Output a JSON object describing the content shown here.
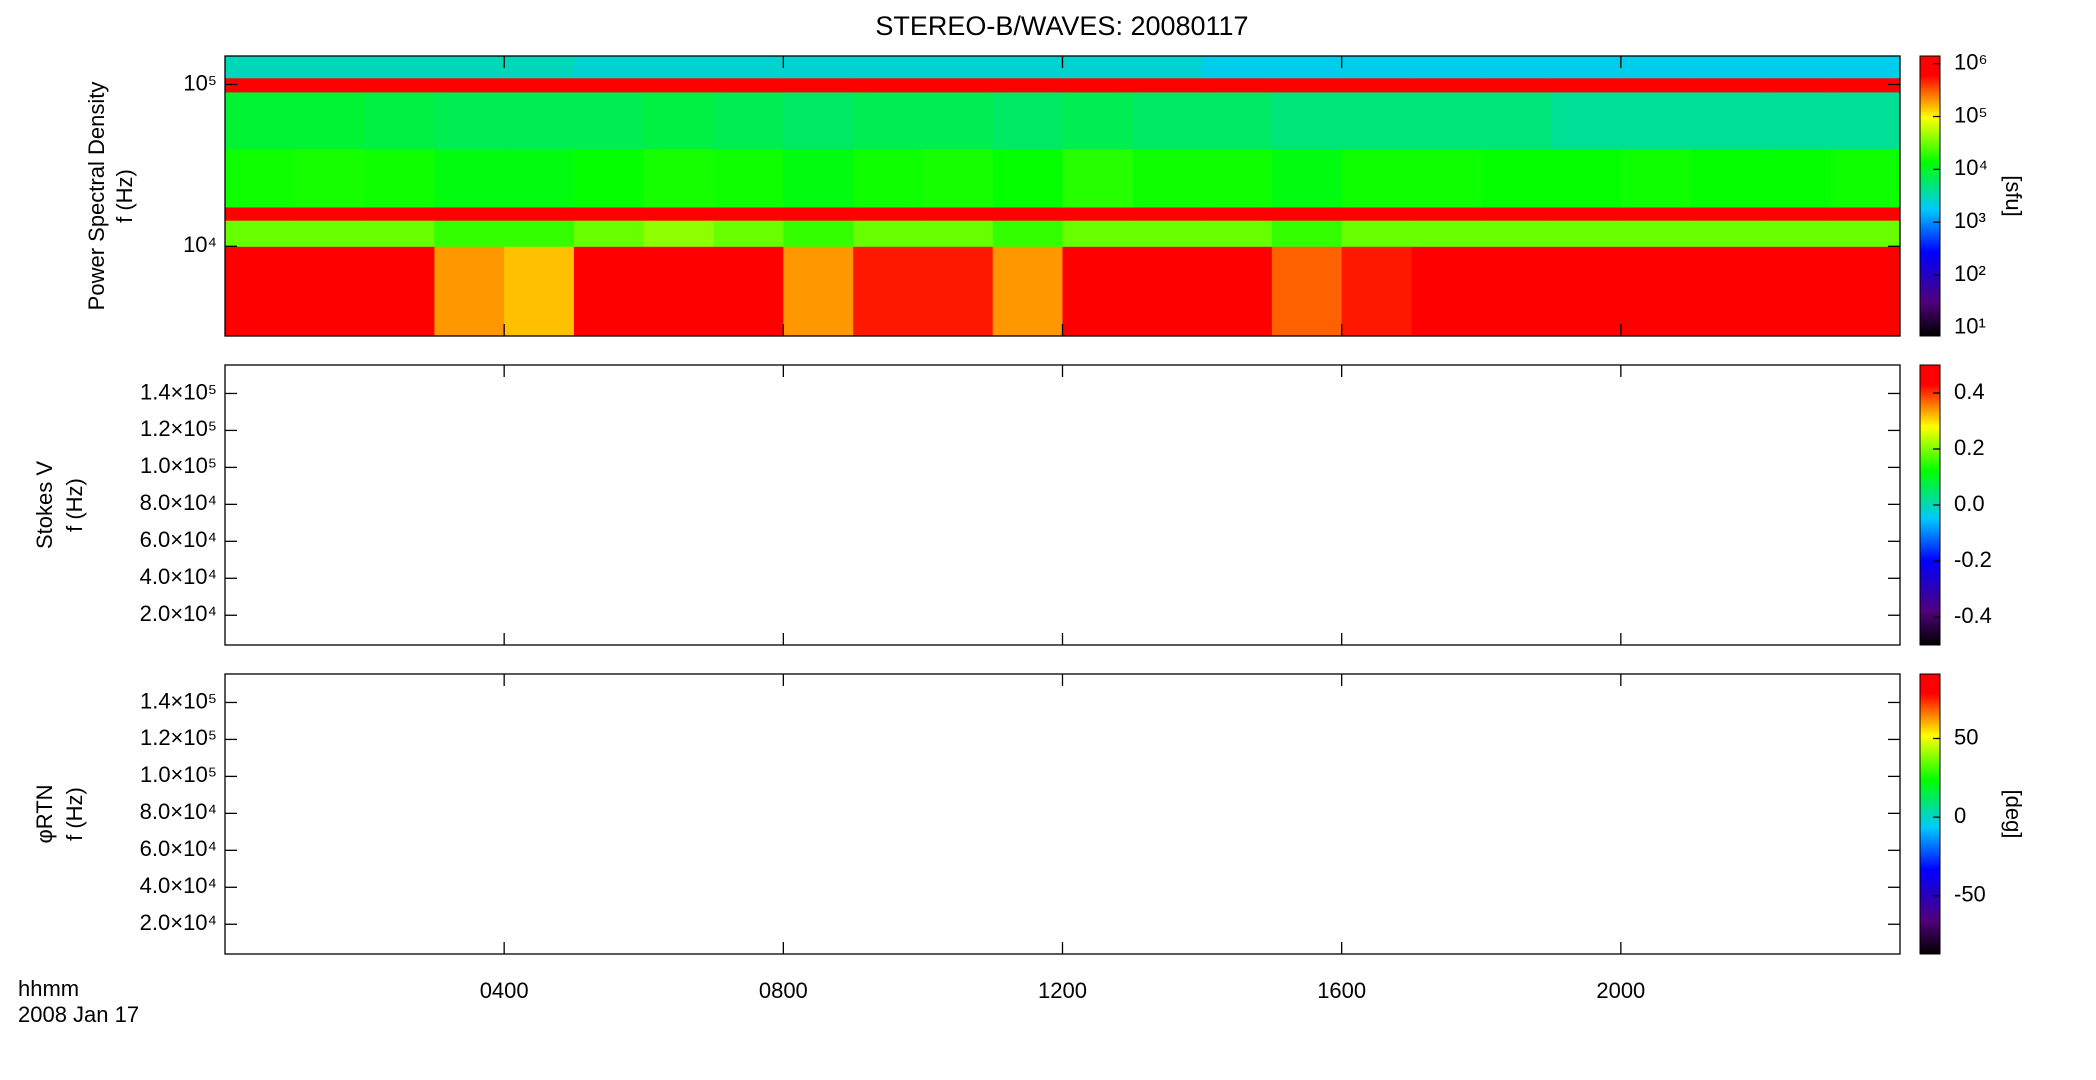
{
  "chart_data": [
    {
      "type": "heatmap",
      "title": "STEREO-B/WAVES: 20080117",
      "y_label": [
        "Power Spectral Density",
        "f (Hz)"
      ],
      "ylog": true,
      "ylim": [
        2790,
        150000
      ],
      "yticks": [
        {
          "value": 10000,
          "label": "10⁴"
        },
        {
          "value": 100000,
          "label": "10⁵"
        }
      ],
      "x_edges": [
        0,
        1,
        2,
        3,
        4,
        5,
        6,
        7,
        8,
        9,
        10,
        11,
        12,
        13,
        14,
        15,
        16,
        17,
        18,
        19,
        20,
        21,
        22,
        23,
        24
      ],
      "y_edges": [
        2790,
        10000,
        14500,
        17500,
        40000,
        90000,
        110000,
        150000
      ],
      "z": [
        [
          1000000,
          800000,
          600000,
          200000,
          150000,
          600000,
          1000000,
          1000000,
          200000,
          500000,
          500000,
          200000,
          800000,
          1000000,
          1000000,
          300000,
          500000,
          600000,
          700000,
          800000,
          800000,
          800000,
          800000,
          900000
        ],
        [
          30000,
          30000,
          30000,
          20000,
          20000,
          30000,
          40000,
          30000,
          20000,
          30000,
          30000,
          20000,
          30000,
          30000,
          30000,
          20000,
          30000,
          30000,
          30000,
          30000,
          30000,
          30000,
          30000,
          30000
        ],
        [
          1000000,
          1000000,
          1000000,
          1000000,
          1000000,
          1000000,
          1000000,
          1000000,
          1000000,
          1000000,
          1000000,
          1000000,
          1000000,
          1000000,
          1000000,
          1000000,
          1000000,
          1000000,
          1000000,
          1000000,
          1000000,
          1000000,
          1000000,
          1000000
        ],
        [
          15000,
          16000,
          15000,
          12000,
          12000,
          14000,
          16000,
          15000,
          12000,
          15000,
          16000,
          14000,
          18000,
          15000,
          15000,
          12000,
          15000,
          15000,
          14000,
          14000,
          15000,
          14000,
          14000,
          15000
        ],
        [
          9000,
          9000,
          8000,
          7000,
          7000,
          7000,
          8000,
          7000,
          6000,
          7000,
          7000,
          6000,
          7000,
          6000,
          6000,
          5000,
          5000,
          5000,
          5000,
          4000,
          4000,
          4000,
          4000,
          4000
        ],
        [
          700000,
          700000,
          700000,
          700000,
          700000,
          700000,
          700000,
          700000,
          700000,
          700000,
          700000,
          700000,
          700000,
          700000,
          700000,
          700000,
          700000,
          700000,
          700000,
          700000,
          700000,
          700000,
          700000,
          700000
        ],
        [
          3000,
          3000,
          3000,
          3000,
          3000,
          2500,
          2500,
          2500,
          2500,
          2500,
          2500,
          2500,
          2500,
          2500,
          2000,
          2000,
          2000,
          2000,
          2000,
          2000,
          2000,
          2000,
          2000,
          2000
        ]
      ],
      "colorbar": {
        "log": true,
        "lim": [
          7,
          1400000
        ],
        "label": "[sfu]",
        "ticks": [
          {
            "value": 10,
            "label": "10¹"
          },
          {
            "value": 100,
            "label": "10²"
          },
          {
            "value": 1000,
            "label": "10³"
          },
          {
            "value": 10000,
            "label": "10⁴"
          },
          {
            "value": 100000,
            "label": "10⁵"
          },
          {
            "value": 1000000,
            "label": "10⁶"
          }
        ]
      }
    },
    {
      "type": "heatmap",
      "y_label": [
        "Stokes V",
        "f (Hz)"
      ],
      "ylog": false,
      "ylim": [
        3900,
        155400
      ],
      "yticks": [
        {
          "value": 20000,
          "label": "2.0×10⁴"
        },
        {
          "value": 40000,
          "label": "4.0×10⁴"
        },
        {
          "value": 60000,
          "label": "6.0×10⁴"
        },
        {
          "value": 80000,
          "label": "8.0×10⁴"
        },
        {
          "value": 100000,
          "label": "1.0×10⁵"
        },
        {
          "value": 120000,
          "label": "1.2×10⁵"
        },
        {
          "value": 140000,
          "label": "1.4×10⁵"
        }
      ],
      "colorbar": {
        "log": false,
        "lim": [
          -0.5,
          0.5
        ],
        "ticks": [
          -0.4,
          -0.2,
          {
            "value": 0,
            "label": "0.0"
          },
          0.2,
          0.4
        ]
      }
    },
    {
      "type": "heatmap",
      "y_label": [
        "φRTN",
        "f (Hz)"
      ],
      "ylog": false,
      "ylim": [
        3900,
        155400
      ],
      "yticks": [
        {
          "value": 20000,
          "label": "2.0×10⁴"
        },
        {
          "value": 40000,
          "label": "4.0×10⁴"
        },
        {
          "value": 60000,
          "label": "6.0×10⁴"
        },
        {
          "value": 80000,
          "label": "8.0×10⁴"
        },
        {
          "value": 100000,
          "label": "1.0×10⁵"
        },
        {
          "value": 120000,
          "label": "1.2×10⁵"
        },
        {
          "value": 140000,
          "label": "1.4×10⁵"
        }
      ],
      "colorbar": {
        "log": false,
        "lim": [
          -87,
          91
        ],
        "label": "[deg]",
        "ticks": [
          -50,
          0,
          50
        ]
      },
      "xlim": [
        0,
        24
      ],
      "xticks": [
        {
          "value": 4,
          "label": "0400"
        },
        {
          "value": 8,
          "label": "0800"
        },
        {
          "value": 12,
          "label": "1200"
        },
        {
          "value": 16,
          "label": "1600"
        },
        {
          "value": 20,
          "label": "2000"
        }
      ],
      "x_label": [
        "hhmm",
        "2008 Jan 17"
      ]
    }
  ]
}
